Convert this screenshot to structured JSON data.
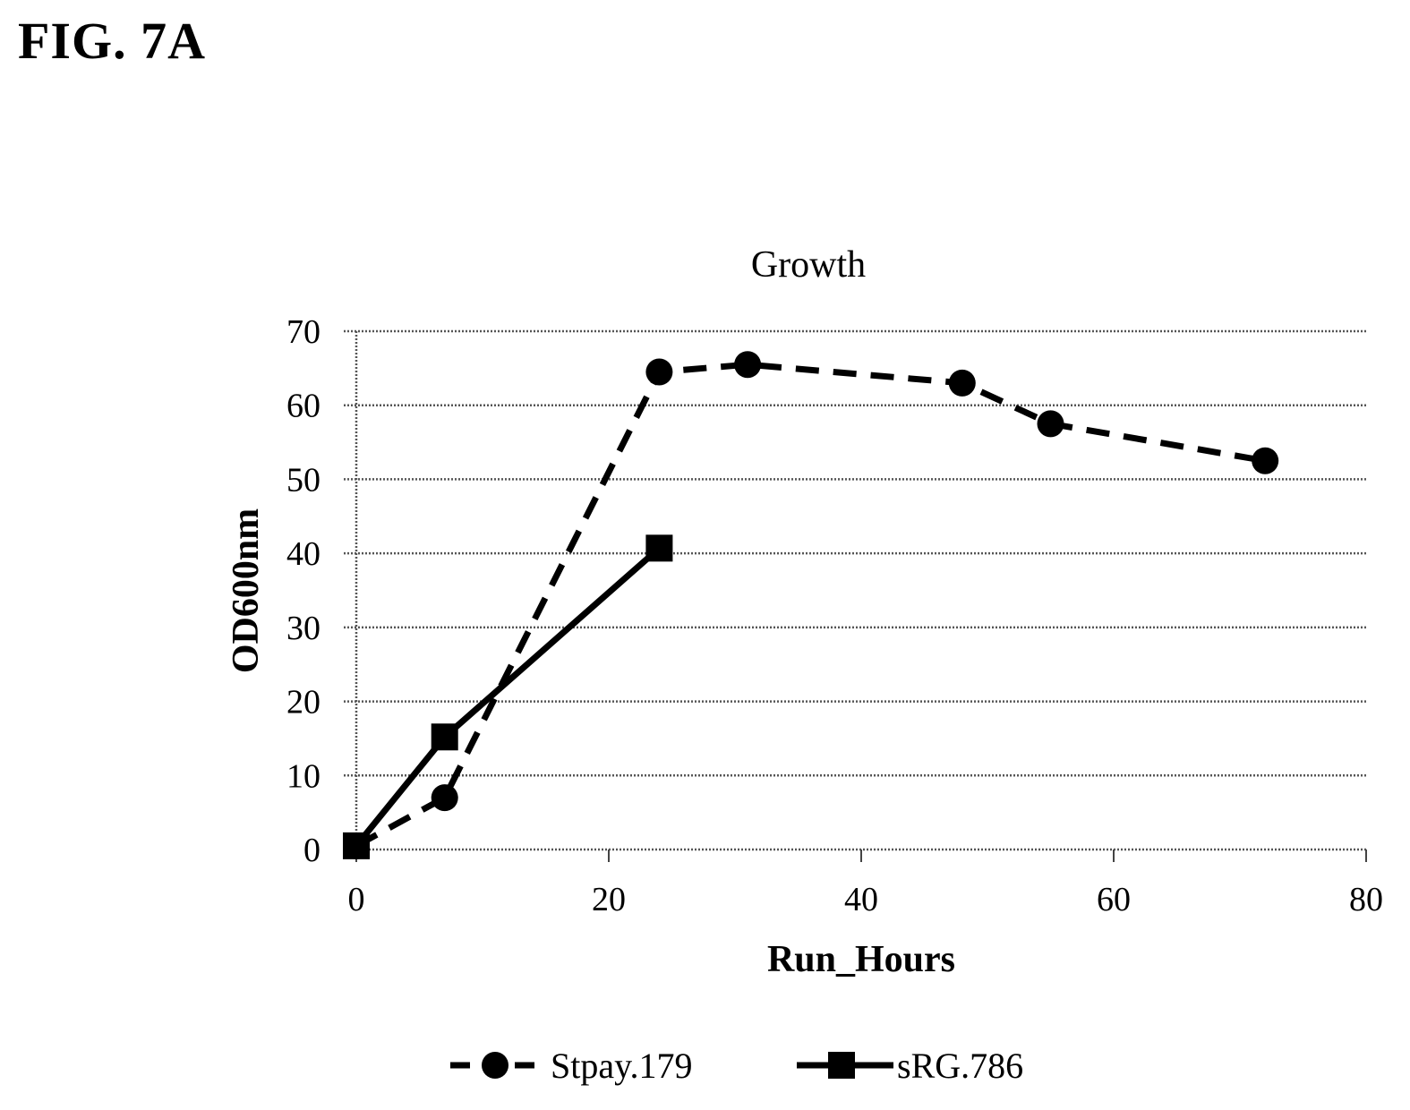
{
  "figure_label": "FIG. 7A",
  "chart_data": {
    "type": "line",
    "title": "Growth",
    "xlabel": "Run_Hours",
    "ylabel": "OD600nm",
    "xlim": [
      0,
      80
    ],
    "ylim": [
      0,
      70
    ],
    "xticks": [
      0,
      20,
      40,
      60,
      80
    ],
    "yticks": [
      0,
      10,
      20,
      30,
      40,
      50,
      60,
      70
    ],
    "grid": true,
    "legend_position": "bottom",
    "series": [
      {
        "name": "Stpay.179",
        "line_style": "dashed",
        "marker": "circle",
        "color": "#000000",
        "x": [
          0,
          7,
          24,
          31,
          48,
          55,
          72
        ],
        "y": [
          0.5,
          7,
          64.5,
          65.5,
          63,
          57.5,
          52.5
        ]
      },
      {
        "name": "sRG.786",
        "line_style": "solid",
        "marker": "square",
        "color": "#000000",
        "x": [
          0,
          7,
          24
        ],
        "y": [
          0.5,
          15.2,
          40.7
        ]
      }
    ]
  }
}
